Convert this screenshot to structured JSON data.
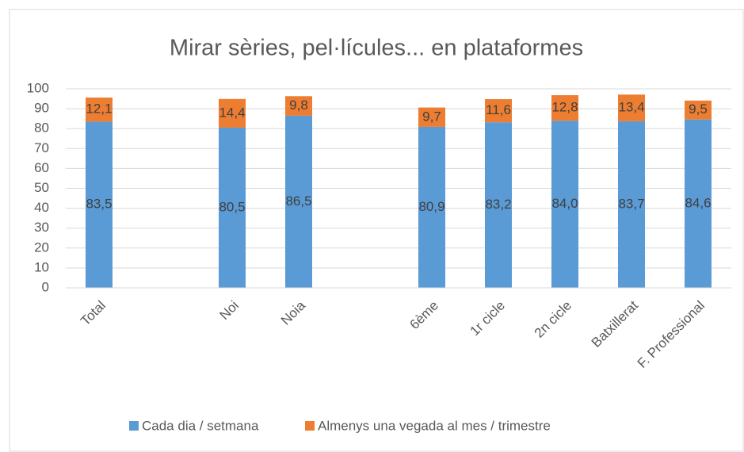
{
  "chart_data": {
    "type": "stacked_bar",
    "title": "Mirar sèries, pel·lícules... en plataformes",
    "categories": [
      "Total",
      null,
      "Noi",
      "Noia",
      null,
      "6ème",
      "1r cicle",
      "2n cicle",
      "Batxillerat",
      "F. Professional"
    ],
    "series": [
      {
        "name": "Cada dia / setmana",
        "color": "#5b9bd5",
        "values": [
          83.5,
          null,
          80.5,
          86.5,
          null,
          80.9,
          83.2,
          84.0,
          83.7,
          84.6
        ],
        "value_labels": [
          "83,5",
          null,
          "80,5",
          "86,5",
          null,
          "80,9",
          "83,2",
          "84,0",
          "83,7",
          "84,6"
        ]
      },
      {
        "name": "Almenys una vegada al mes / trimestre",
        "color": "#ed7d31",
        "values": [
          12.1,
          null,
          14.4,
          9.8,
          null,
          9.7,
          11.6,
          12.8,
          13.4,
          9.5
        ],
        "value_labels": [
          "12,1",
          null,
          "14,4",
          "9,8",
          null,
          "9,7",
          "11,6",
          "12,8",
          "13,4",
          "9,5"
        ]
      }
    ],
    "ylim": [
      0,
      100
    ],
    "yticks": [
      0,
      10,
      20,
      30,
      40,
      50,
      60,
      70,
      80,
      90,
      100
    ],
    "grid": true,
    "legend": "bottom"
  }
}
